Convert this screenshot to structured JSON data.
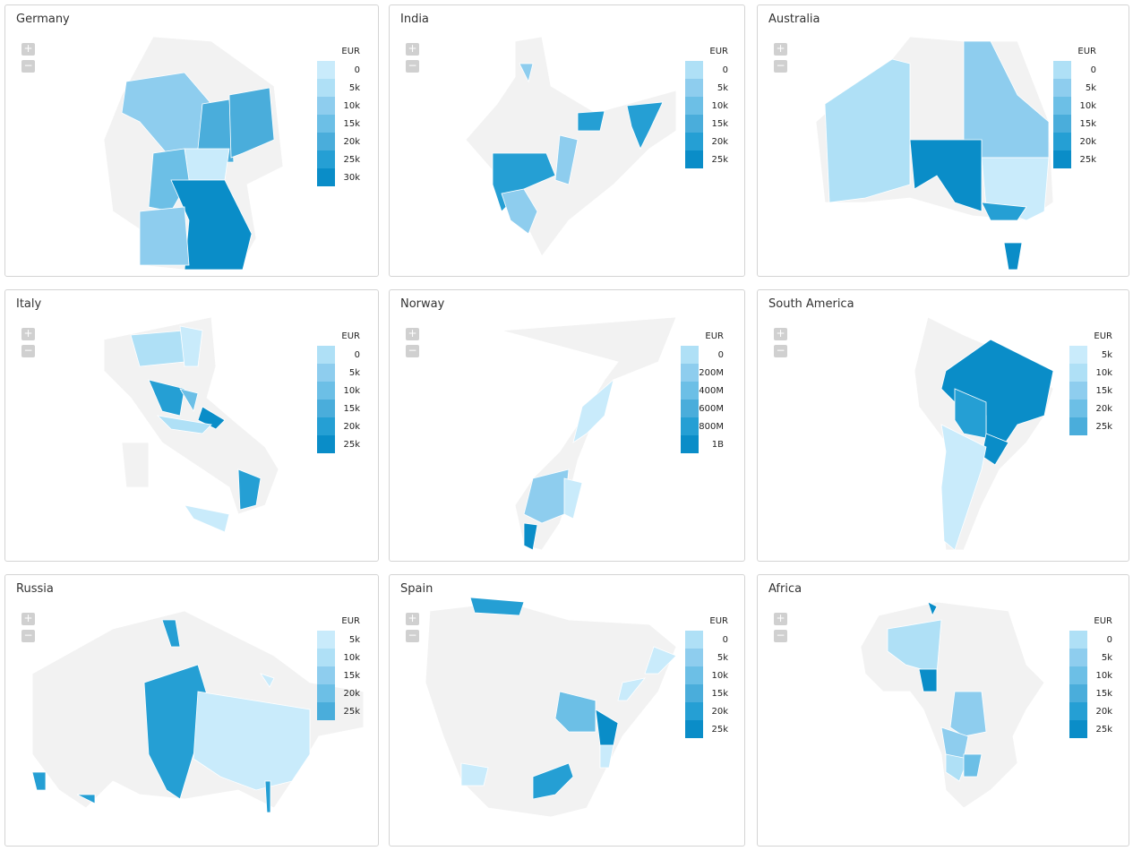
{
  "scale_colors": [
    "#c9ebfb",
    "#afe0f6",
    "#8ecdee",
    "#6cbfe6",
    "#4aaddb",
    "#259fd4",
    "#0a8dc8"
  ],
  "base_color": "#f2f2f2",
  "zoom_in_label": "+",
  "zoom_out_label": "−",
  "panels": [
    {
      "title": "Germany",
      "unit": "EUR",
      "legend": [
        "0",
        "5k",
        "10k",
        "15k",
        "20k",
        "25k",
        "30k"
      ]
    },
    {
      "title": "India",
      "unit": "EUR",
      "legend": [
        "0",
        "5k",
        "10k",
        "15k",
        "20k",
        "25k"
      ]
    },
    {
      "title": "Australia",
      "unit": "EUR",
      "legend": [
        "0",
        "5k",
        "10k",
        "15k",
        "20k",
        "25k"
      ]
    },
    {
      "title": "Italy",
      "unit": "EUR",
      "legend": [
        "0",
        "5k",
        "10k",
        "15k",
        "20k",
        "25k"
      ]
    },
    {
      "title": "Norway",
      "unit": "EUR",
      "legend": [
        "0",
        "200M",
        "400M",
        "600M",
        "800M",
        "1B"
      ]
    },
    {
      "title": "South America",
      "unit": "EUR",
      "legend": [
        "5k",
        "10k",
        "15k",
        "20k",
        "25k"
      ]
    },
    {
      "title": "Russia",
      "unit": "EUR",
      "legend": [
        "5k",
        "10k",
        "15k",
        "20k",
        "25k"
      ]
    },
    {
      "title": "Spain",
      "unit": "EUR",
      "legend": [
        "0",
        "5k",
        "10k",
        "15k",
        "20k",
        "25k"
      ]
    },
    {
      "title": "Africa",
      "unit": "EUR",
      "legend": [
        "0",
        "5k",
        "10k",
        "15k",
        "20k",
        "25k"
      ]
    }
  ]
}
